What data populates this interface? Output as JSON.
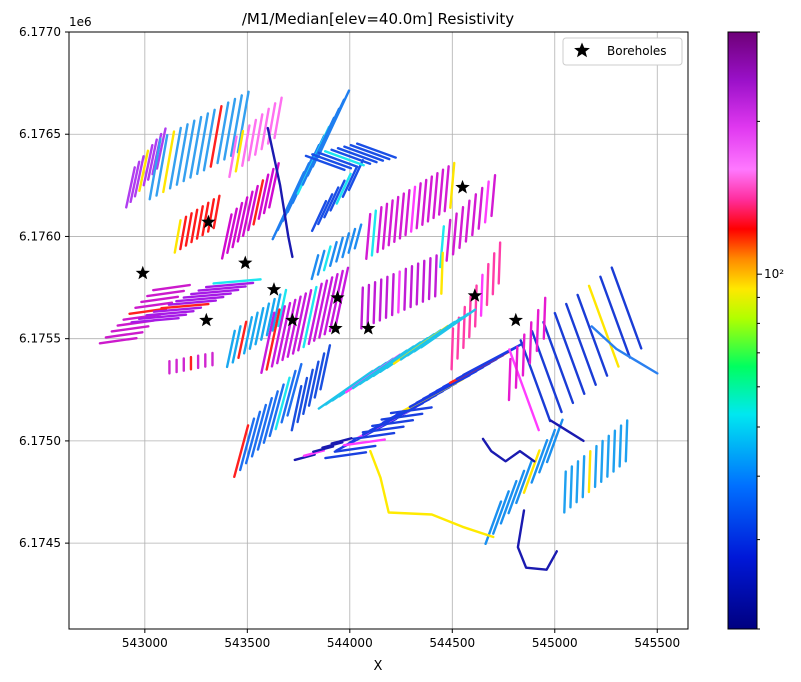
{
  "chart_data": {
    "type": "scatter",
    "title": "/M1/Median[elev=40.0m] Resistivity",
    "xlabel": "X",
    "ylabel": "",
    "y_offset_label": "1e6",
    "xlim": [
      542630,
      545650
    ],
    "ylim": [
      6174080,
      6177000
    ],
    "x_ticks": [
      543000,
      543500,
      544000,
      544500,
      545000,
      545500
    ],
    "x_tick_labels": [
      "543000",
      "543500",
      "544000",
      "544500",
      "545000",
      "545500"
    ],
    "y_ticks": [
      6174500,
      6175000,
      6175500,
      6176000,
      6176500,
      6177000
    ],
    "y_tick_labels": [
      "6.1745",
      "6.1750",
      "6.1755",
      "6.1760",
      "6.1765",
      "6.1770"
    ],
    "grid": true,
    "legend": {
      "placement": "top-right",
      "entries": [
        "Boreholes"
      ]
    },
    "colorbar": {
      "scale": "log",
      "range": [
        20,
        300
      ],
      "major_tick_label": "10²",
      "major_tick_value": 100,
      "colormap": "gist_ncar"
    },
    "series": [
      {
        "name": "Boreholes",
        "marker": "star",
        "color": "#000000",
        "points": [
          [
            543310,
            6176070
          ],
          [
            542990,
            6175820
          ],
          [
            543490,
            6175870
          ],
          [
            543630,
            6175740
          ],
          [
            543300,
            6175590
          ],
          [
            543720,
            6175590
          ],
          [
            543940,
            6175700
          ],
          [
            543930,
            6175550
          ],
          [
            544090,
            6175550
          ],
          [
            544550,
            6176240
          ],
          [
            544610,
            6175710
          ],
          [
            544810,
            6175590
          ]
        ]
      }
    ],
    "flight_line_blocks": [
      {
        "x0": 542930,
        "y0": 6176240,
        "x1": 543080,
        "y1": 6176430,
        "n": 8,
        "len": 200,
        "ang": 78,
        "color": "#b03cf0"
      },
      {
        "x0": 543050,
        "y0": 6176330,
        "x1": 543480,
        "y1": 6176560,
        "n": 14,
        "len": 300,
        "ang": 80,
        "color": "#34a0f0"
      },
      {
        "x0": 543430,
        "y0": 6176390,
        "x1": 543650,
        "y1": 6176580,
        "n": 8,
        "len": 200,
        "ang": 80,
        "color": "#ff70f0"
      },
      {
        "x0": 543160,
        "y0": 6176000,
        "x1": 543350,
        "y1": 6176120,
        "n": 8,
        "len": 160,
        "ang": 80,
        "color": "#ff1a1a"
      },
      {
        "x0": 543400,
        "y0": 6176000,
        "x1": 543630,
        "y1": 6176250,
        "n": 10,
        "len": 220,
        "ang": 78,
        "color": "#d00ad0"
      },
      {
        "x0": 542870,
        "y0": 6175490,
        "x1": 543130,
        "y1": 6175750,
        "n": 10,
        "len": 180,
        "ang": 8,
        "color": "#cc1acc"
      },
      {
        "x0": 543050,
        "y0": 6175590,
        "x1": 543450,
        "y1": 6175780,
        "n": 12,
        "len": 230,
        "ang": 5,
        "color": "#a61ae6"
      },
      {
        "x0": 543120,
        "y0": 6175360,
        "x1": 543330,
        "y1": 6175400,
        "n": 7,
        "len": 60,
        "ang": 90,
        "color": "#d026d0"
      },
      {
        "x0": 543420,
        "y0": 6175450,
        "x1": 543670,
        "y1": 6175650,
        "n": 10,
        "len": 180,
        "ang": 78,
        "color": "#19a8f0"
      },
      {
        "x0": 543600,
        "y0": 6175480,
        "x1": 543960,
        "y1": 6175700,
        "n": 15,
        "len": 300,
        "ang": 78,
        "color": "#c819dc"
      },
      {
        "x0": 543470,
        "y0": 6174950,
        "x1": 543730,
        "y1": 6175250,
        "n": 10,
        "len": 260,
        "ang": 75,
        "color": "#1e70f0"
      },
      {
        "x0": 543740,
        "y0": 6175160,
        "x1": 543880,
        "y1": 6175360,
        "n": 6,
        "len": 220,
        "ang": 78,
        "color": "#1a50e0"
      },
      {
        "x0": 543700,
        "y0": 6176150,
        "x1": 543920,
        "y1": 6176550,
        "n": 10,
        "len": 360,
        "ang": 65,
        "color": "#1e7ef0"
      },
      {
        "x0": 543850,
        "y0": 6176100,
        "x1": 544030,
        "y1": 6176300,
        "n": 7,
        "len": 160,
        "ang": 65,
        "color": "#1a4fe6"
      },
      {
        "x0": 543880,
        "y0": 6176360,
        "x1": 544130,
        "y1": 6176420,
        "n": 9,
        "len": 200,
        "ang": 160,
        "color": "#1a4fe6"
      },
      {
        "x0": 543830,
        "y0": 6175850,
        "x1": 544040,
        "y1": 6176000,
        "n": 8,
        "len": 120,
        "ang": 75,
        "color": "#1f8cf0"
      },
      {
        "x0": 544090,
        "y0": 6176000,
        "x1": 544500,
        "y1": 6176250,
        "n": 16,
        "len": 220,
        "ang": 85,
        "color": "#d31ad3"
      },
      {
        "x0": 544450,
        "y0": 6175950,
        "x1": 544700,
        "y1": 6176200,
        "n": 9,
        "len": 200,
        "ang": 85,
        "color": "#d31ad3"
      },
      {
        "x0": 544060,
        "y0": 6175650,
        "x1": 544450,
        "y1": 6175820,
        "n": 14,
        "len": 200,
        "ang": 88,
        "color": "#c01ad6"
      },
      {
        "x0": 544500,
        "y0": 6175450,
        "x1": 544730,
        "y1": 6175870,
        "n": 9,
        "len": 200,
        "ang": 88,
        "color": "#ff3ca8"
      },
      {
        "x0": 543980,
        "y0": 6175250,
        "x1": 544480,
        "y1": 6175550,
        "n": 16,
        "len": 320,
        "ang": 35,
        "color": "#1ec4ea"
      },
      {
        "x0": 544080,
        "y0": 6175030,
        "x1": 544700,
        "y1": 6175400,
        "n": 20,
        "len": 330,
        "ang": 28,
        "color": "#1a3ce6"
      },
      {
        "x0": 543980,
        "y0": 6174930,
        "x1": 544300,
        "y1": 6175150,
        "n": 8,
        "len": 200,
        "ang": 8,
        "color": "#1a40e0"
      },
      {
        "x0": 543780,
        "y0": 6174920,
        "x1": 543960,
        "y1": 6175000,
        "n": 5,
        "len": 100,
        "ang": 15,
        "color": "#1a1ab0"
      },
      {
        "x0": 544850,
        "y0": 6175250,
        "x1": 545350,
        "y1": 6175650,
        "n": 10,
        "len": 420,
        "ang": 110,
        "color": "#1a3cd6"
      },
      {
        "x0": 544780,
        "y0": 6175300,
        "x1": 544950,
        "y1": 6175600,
        "n": 6,
        "len": 200,
        "ang": 88,
        "color": "#e61ad0"
      },
      {
        "x0": 544700,
        "y0": 6174600,
        "x1": 545000,
        "y1": 6175000,
        "n": 9,
        "len": 220,
        "ang": 70,
        "color": "#1a90f0"
      },
      {
        "x0": 545050,
        "y0": 6174750,
        "x1": 545350,
        "y1": 6175000,
        "n": 11,
        "len": 200,
        "ang": 88,
        "color": "#1ea0f0"
      }
    ],
    "paths": [
      {
        "color": "#ffea00",
        "pts": [
          [
            544100,
            6174950
          ],
          [
            544150,
            6174820
          ],
          [
            544190,
            6174650
          ],
          [
            544400,
            6174640
          ],
          [
            544550,
            6174580
          ],
          [
            544700,
            6174530
          ]
        ]
      },
      {
        "color": "#1a1ab0",
        "pts": [
          [
            544650,
            6175010
          ],
          [
            544690,
            6174950
          ],
          [
            544760,
            6174900
          ],
          [
            544830,
            6174950
          ],
          [
            544900,
            6174900
          ]
        ]
      },
      {
        "color": "#1a1ab0",
        "pts": [
          [
            544850,
            6174660
          ],
          [
            544820,
            6174480
          ],
          [
            544860,
            6174380
          ],
          [
            544960,
            6174370
          ],
          [
            545010,
            6174460
          ]
        ]
      },
      {
        "color": "#1a1ab0",
        "pts": [
          [
            543600,
            6176530
          ],
          [
            543660,
            6176250
          ],
          [
            543700,
            6176000
          ],
          [
            543720,
            6175900
          ]
        ]
      },
      {
        "color": "#2a80f0",
        "pts": [
          [
            545180,
            6175560
          ],
          [
            545300,
            6175450
          ],
          [
            545500,
            6175330
          ]
        ]
      },
      {
        "color": "#1a1ab0",
        "pts": [
          [
            544980,
            6175100
          ],
          [
            545060,
            6175050
          ],
          [
            545140,
            6175000
          ]
        ]
      }
    ]
  }
}
